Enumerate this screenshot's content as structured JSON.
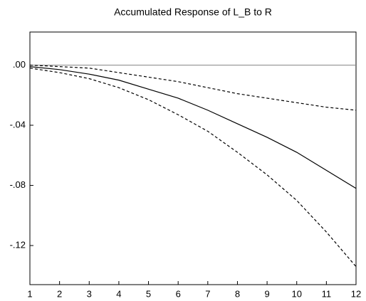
{
  "chart_data": {
    "type": "line",
    "title": "Accumulated Response of L_B to R",
    "x": [
      1,
      2,
      3,
      4,
      5,
      6,
      7,
      8,
      9,
      10,
      11,
      12
    ],
    "series": [
      {
        "color": "#000000",
        "dash": false,
        "values": [
          -0.001,
          -0.003,
          -0.006,
          -0.01,
          -0.016,
          -0.022,
          -0.03,
          -0.039,
          -0.048,
          -0.058,
          -0.07,
          -0.082
        ]
      },
      {
        "color": "#000000",
        "dash": true,
        "values": [
          0.0,
          -0.001,
          -0.002,
          -0.005,
          -0.008,
          -0.011,
          -0.015,
          -0.019,
          -0.022,
          -0.025,
          -0.028,
          -0.03
        ]
      },
      {
        "color": "#000000",
        "dash": true,
        "values": [
          -0.002,
          -0.005,
          -0.009,
          -0.015,
          -0.023,
          -0.033,
          -0.044,
          -0.058,
          -0.073,
          -0.09,
          -0.111,
          -0.134
        ]
      }
    ],
    "xlim": [
      1,
      12
    ],
    "xticks": [
      1,
      2,
      3,
      4,
      5,
      6,
      7,
      8,
      9,
      10,
      11,
      12
    ],
    "ylim": [
      -0.146,
      0.022
    ],
    "yticks": [
      {
        "value": 0,
        "label": ".00"
      },
      {
        "value": -0.04,
        "label": "-.04"
      },
      {
        "value": -0.08,
        "label": "-.08"
      },
      {
        "value": -0.12,
        "label": "-.12"
      }
    ],
    "zero_line": true
  }
}
